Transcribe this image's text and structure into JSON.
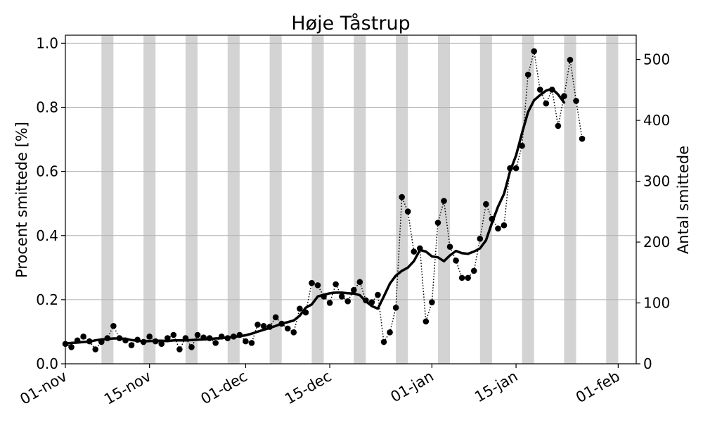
{
  "chart_data": {
    "type": "line",
    "title": "Høje Tåstrup",
    "ylabel": "Procent smittede [%]",
    "ylabel_right": "Antal smittede",
    "xlim": [
      "2020-11-01",
      "2021-02-04"
    ],
    "ylim": [
      0,
      1.025
    ],
    "ylim_right": [
      0,
      540
    ],
    "yticks": [
      0.0,
      0.2,
      0.4,
      0.6,
      0.8,
      1.0
    ],
    "ytick_labels": [
      "0.0",
      "0.2",
      "0.4",
      "0.6",
      "0.8",
      "1.0"
    ],
    "yticks_right": [
      0,
      100,
      200,
      300,
      400,
      500
    ],
    "ytick_labels_right": [
      "0",
      "100",
      "200",
      "300",
      "400",
      "500"
    ],
    "xtick_dates": [
      "2020-11-01",
      "2020-11-15",
      "2020-12-01",
      "2020-12-15",
      "2021-01-01",
      "2021-01-15",
      "2021-02-01"
    ],
    "xtick_labels": [
      "01-nov",
      "15-nov",
      "01-dec",
      "15-dec",
      "01-jan",
      "15-jan",
      "01-feb"
    ],
    "grid": "horizontal",
    "weekend_bands_start": [
      "2020-11-07",
      "2020-11-14",
      "2020-11-21",
      "2020-11-28",
      "2020-12-05",
      "2020-12-12",
      "2020-12-19",
      "2020-12-26",
      "2021-01-02",
      "2021-01-09",
      "2021-01-16",
      "2021-01-23",
      "2021-01-30"
    ],
    "colors": {
      "line": "#000000",
      "weekend": "#d3d3d3",
      "grid": "#b0b0b0"
    },
    "series": [
      {
        "style": "dotted-markers",
        "x": [
          "2020-11-01",
          "2020-11-02",
          "2020-11-03",
          "2020-11-04",
          "2020-11-05",
          "2020-11-06",
          "2020-11-07",
          "2020-11-08",
          "2020-11-09",
          "2020-11-10",
          "2020-11-11",
          "2020-11-12",
          "2020-11-13",
          "2020-11-14",
          "2020-11-15",
          "2020-11-16",
          "2020-11-17",
          "2020-11-18",
          "2020-11-19",
          "2020-11-20",
          "2020-11-21",
          "2020-11-22",
          "2020-11-23",
          "2020-11-24",
          "2020-11-25",
          "2020-11-26",
          "2020-11-27",
          "2020-11-28",
          "2020-11-29",
          "2020-11-30",
          "2020-12-01",
          "2020-12-02",
          "2020-12-03",
          "2020-12-04",
          "2020-12-05",
          "2020-12-06",
          "2020-12-07",
          "2020-12-08",
          "2020-12-09",
          "2020-12-10",
          "2020-12-11",
          "2020-12-12",
          "2020-12-13",
          "2020-12-14",
          "2020-12-15",
          "2020-12-16",
          "2020-12-17",
          "2020-12-18",
          "2020-12-19",
          "2020-12-20",
          "2020-12-21",
          "2020-12-22",
          "2020-12-23",
          "2020-12-24",
          "2020-12-25",
          "2020-12-26",
          "2020-12-27",
          "2020-12-28",
          "2020-12-29",
          "2020-12-30",
          "2020-12-31",
          "2021-01-01",
          "2021-01-02",
          "2021-01-03",
          "2021-01-04",
          "2021-01-05",
          "2021-01-06",
          "2021-01-07",
          "2021-01-08",
          "2021-01-09",
          "2021-01-10",
          "2021-01-11",
          "2021-01-12",
          "2021-01-13",
          "2021-01-14",
          "2021-01-15",
          "2021-01-16",
          "2021-01-17",
          "2021-01-18",
          "2021-01-19",
          "2021-01-20",
          "2021-01-21",
          "2021-01-22",
          "2021-01-23",
          "2021-01-24",
          "2021-01-25",
          "2021-01-26"
        ],
        "y": [
          0.062,
          0.052,
          0.073,
          0.085,
          0.07,
          0.045,
          0.068,
          0.08,
          0.118,
          0.08,
          0.073,
          0.058,
          0.075,
          0.068,
          0.085,
          0.07,
          0.062,
          0.08,
          0.09,
          0.045,
          0.08,
          0.052,
          0.09,
          0.082,
          0.08,
          0.065,
          0.085,
          0.08,
          0.085,
          0.09,
          0.07,
          0.065,
          0.122,
          0.118,
          0.115,
          0.145,
          0.125,
          0.11,
          0.098,
          0.172,
          0.16,
          0.252,
          0.245,
          0.21,
          0.19,
          0.248,
          0.21,
          0.195,
          0.23,
          0.255,
          0.198,
          0.192,
          0.215,
          0.068,
          0.098,
          0.175,
          0.52,
          0.475,
          0.35,
          0.36,
          0.132,
          0.192,
          0.44,
          0.508,
          0.365,
          0.322,
          0.268,
          0.268,
          0.29,
          0.39,
          0.498,
          0.452,
          0.422,
          0.432,
          0.61,
          0.61,
          0.68,
          0.902,
          0.975,
          0.855,
          0.812,
          0.855,
          0.742,
          0.835,
          0.948,
          0.82,
          0.702
        ]
      },
      {
        "style": "solid-thick",
        "x": [
          "2020-11-01",
          "2020-11-02",
          "2020-11-03",
          "2020-11-04",
          "2020-11-05",
          "2020-11-06",
          "2020-11-07",
          "2020-11-08",
          "2020-11-09",
          "2020-11-10",
          "2020-11-11",
          "2020-11-12",
          "2020-11-13",
          "2020-11-14",
          "2020-11-15",
          "2020-11-16",
          "2020-11-17",
          "2020-11-18",
          "2020-11-19",
          "2020-11-20",
          "2020-11-21",
          "2020-11-22",
          "2020-11-23",
          "2020-11-24",
          "2020-11-25",
          "2020-11-26",
          "2020-11-27",
          "2020-11-28",
          "2020-11-29",
          "2020-11-30",
          "2020-12-01",
          "2020-12-02",
          "2020-12-03",
          "2020-12-04",
          "2020-12-05",
          "2020-12-06",
          "2020-12-07",
          "2020-12-08",
          "2020-12-09",
          "2020-12-10",
          "2020-12-11",
          "2020-12-12",
          "2020-12-13",
          "2020-12-14",
          "2020-12-15",
          "2020-12-16",
          "2020-12-17",
          "2020-12-18",
          "2020-12-19",
          "2020-12-20",
          "2020-12-21",
          "2020-12-22",
          "2020-12-23",
          "2020-12-24",
          "2020-12-25",
          "2020-12-26",
          "2020-12-27",
          "2020-12-28",
          "2020-12-29",
          "2020-12-30",
          "2020-12-31",
          "2021-01-01",
          "2021-01-02",
          "2021-01-03",
          "2021-01-04",
          "2021-01-05",
          "2021-01-06",
          "2021-01-07",
          "2021-01-08",
          "2021-01-09",
          "2021-01-10",
          "2021-01-11",
          "2021-01-12",
          "2021-01-13",
          "2021-01-14",
          "2021-01-15",
          "2021-01-16",
          "2021-01-17",
          "2021-01-18",
          "2021-01-19",
          "2021-01-20",
          "2021-01-21",
          "2021-01-22",
          "2021-01-23"
        ],
        "y": [
          0.063,
          0.065,
          0.066,
          0.068,
          0.069,
          0.073,
          0.076,
          0.077,
          0.079,
          0.079,
          0.078,
          0.074,
          0.072,
          0.07,
          0.071,
          0.072,
          0.072,
          0.071,
          0.073,
          0.073,
          0.073,
          0.074,
          0.075,
          0.076,
          0.077,
          0.079,
          0.08,
          0.082,
          0.084,
          0.086,
          0.089,
          0.094,
          0.1,
          0.106,
          0.112,
          0.118,
          0.125,
          0.13,
          0.135,
          0.15,
          0.175,
          0.185,
          0.21,
          0.215,
          0.22,
          0.222,
          0.222,
          0.22,
          0.219,
          0.214,
          0.195,
          0.18,
          0.172,
          0.21,
          0.25,
          0.275,
          0.29,
          0.3,
          0.32,
          0.355,
          0.35,
          0.335,
          0.332,
          0.32,
          0.338,
          0.352,
          0.345,
          0.343,
          0.35,
          0.36,
          0.385,
          0.44,
          0.49,
          0.53,
          0.6,
          0.65,
          0.72,
          0.785,
          0.822,
          0.838,
          0.852,
          0.858,
          0.84,
          0.815
        ]
      }
    ]
  }
}
